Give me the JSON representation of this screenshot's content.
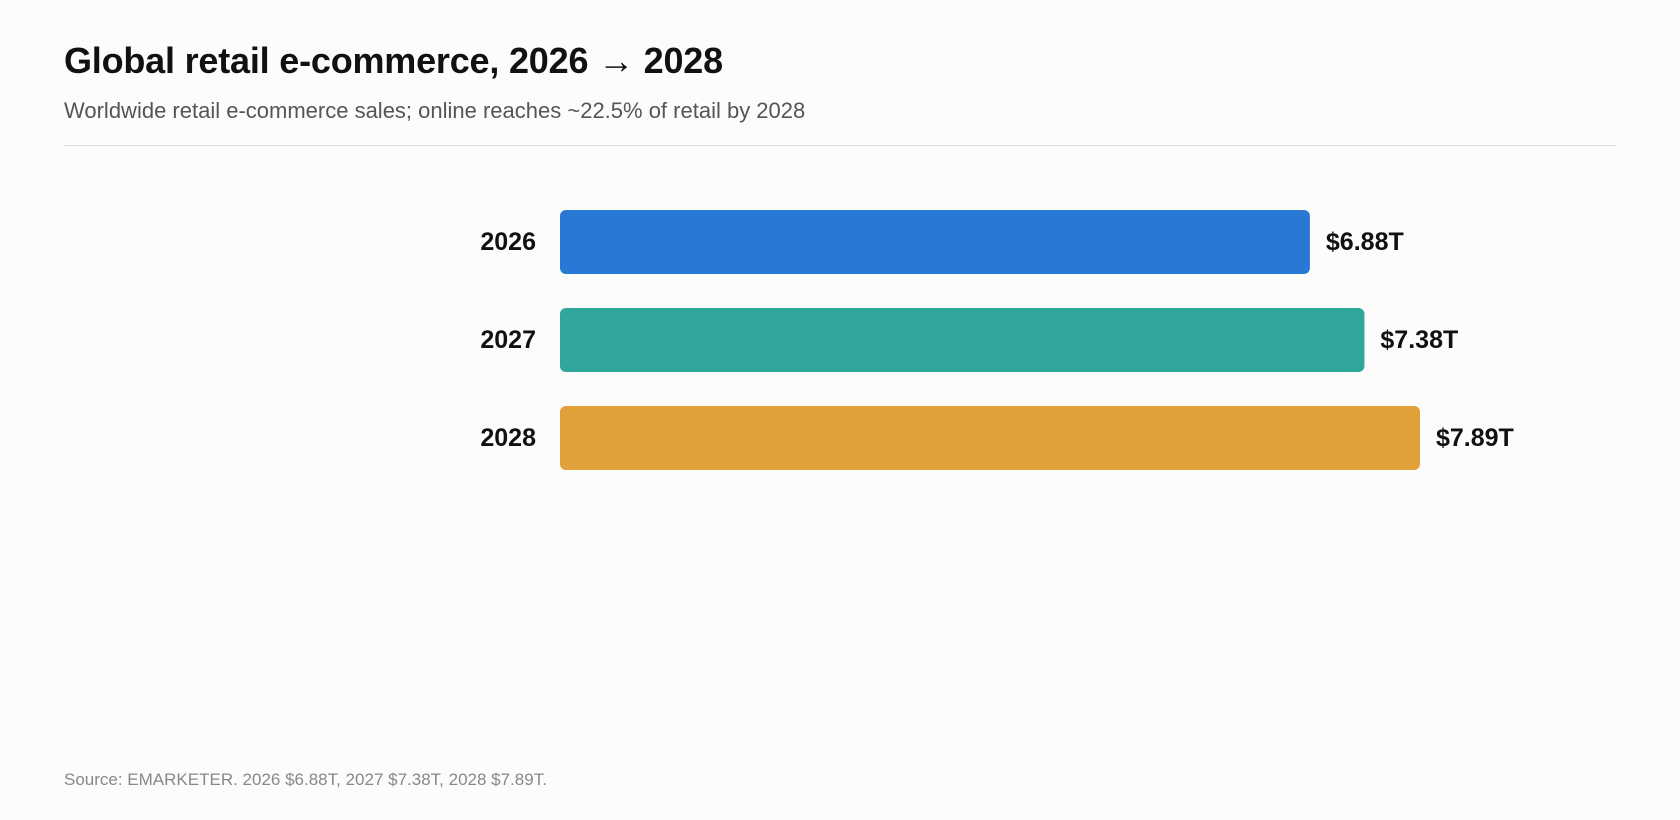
{
  "chart_data": {
    "type": "bar",
    "orientation": "horizontal",
    "title": "Global retail e-commerce, 2026 → 2028",
    "subtitle": "Worldwide retail e-commerce sales; online reaches ~22.5% of retail by 2028",
    "categories": [
      "2026",
      "2027",
      "2028"
    ],
    "values": [
      6.88,
      7.38,
      7.89
    ],
    "value_labels": [
      "$6.88T",
      "$7.38T",
      "$7.89T"
    ],
    "colors": [
      "#2a78d6",
      "#2fa59b",
      "#e2a03a"
    ],
    "xlim": [
      0,
      7.89
    ],
    "grid": false,
    "legend": "none",
    "source": "Source: EMARKETER. 2026 $6.88T, 2027 $7.38T, 2028 $7.89T."
  }
}
